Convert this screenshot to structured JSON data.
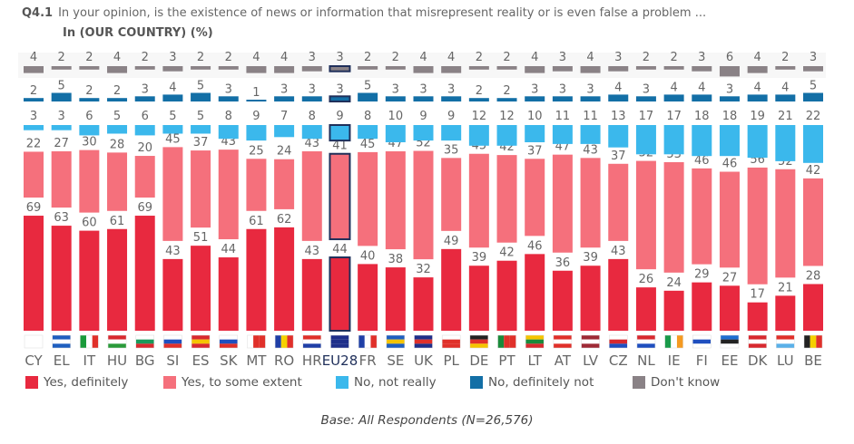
{
  "question_id": "Q4.1",
  "question": "In your opinion, is the existence of news or information that misrepresent reality or is even false a problem ...",
  "subtitle": "In (OUR COUNTRY)  (%)",
  "base": "Base: All Respondents (N=26,576)",
  "chart_data": {
    "type": "bar",
    "stacked": true,
    "highlight": "EU28",
    "categories": [
      "CY",
      "EL",
      "IT",
      "HU",
      "BG",
      "SI",
      "ES",
      "SK",
      "MT",
      "RO",
      "HR",
      "EU28",
      "FR",
      "SE",
      "UK",
      "PL",
      "DE",
      "PT",
      "LT",
      "AT",
      "LV",
      "CZ",
      "NL",
      "IE",
      "FI",
      "EE",
      "DK",
      "LU",
      "BE"
    ],
    "series": [
      {
        "name": "Yes, definitely",
        "color": "#e8293f",
        "values": [
          69,
          63,
          60,
          61,
          69,
          43,
          51,
          44,
          61,
          62,
          43,
          44,
          40,
          38,
          32,
          49,
          39,
          42,
          46,
          36,
          39,
          43,
          26,
          24,
          29,
          27,
          17,
          21,
          28
        ]
      },
      {
        "name": "Yes, to some extent",
        "color": "#f5707c",
        "values": [
          22,
          27,
          30,
          28,
          20,
          45,
          37,
          43,
          25,
          24,
          43,
          41,
          45,
          47,
          52,
          35,
          45,
          42,
          37,
          47,
          43,
          37,
          52,
          53,
          46,
          46,
          56,
          52,
          42
        ]
      },
      {
        "name": "No, not really",
        "color": "#3bb8ec",
        "values": [
          3,
          3,
          6,
          5,
          6,
          5,
          5,
          8,
          9,
          7,
          8,
          9,
          8,
          10,
          9,
          9,
          12,
          12,
          10,
          11,
          11,
          13,
          17,
          17,
          18,
          18,
          19,
          21,
          22
        ]
      },
      {
        "name": "No, definitely not",
        "color": "#136fa6",
        "values": [
          2,
          5,
          2,
          2,
          3,
          4,
          5,
          3,
          1,
          3,
          3,
          3,
          5,
          3,
          3,
          3,
          2,
          2,
          3,
          3,
          3,
          4,
          3,
          4,
          4,
          3,
          4,
          4,
          5
        ]
      },
      {
        "name": "Don't know",
        "color": "#8a8286",
        "values": [
          4,
          2,
          2,
          4,
          2,
          3,
          2,
          2,
          4,
          4,
          3,
          3,
          2,
          2,
          4,
          4,
          2,
          2,
          4,
          3,
          4,
          3,
          2,
          2,
          3,
          6,
          4,
          2,
          3
        ]
      }
    ],
    "flags": {
      "CY": {
        "d": "h",
        "c": [
          "#ffffff",
          "#ffffff",
          "#ffffff"
        ]
      },
      "EL": {
        "d": "h",
        "c": [
          "#1f5fbf",
          "#ffffff",
          "#1f5fbf"
        ]
      },
      "IT": {
        "d": "v",
        "c": [
          "#1a9a3a",
          "#ffffff",
          "#e0302a"
        ]
      },
      "HU": {
        "d": "h",
        "c": [
          "#d8292f",
          "#ffffff",
          "#2a9a3a"
        ]
      },
      "BG": {
        "d": "h",
        "c": [
          "#ffffff",
          "#1a9a5a",
          "#d8292f"
        ]
      },
      "SI": {
        "d": "h",
        "c": [
          "#ffffff",
          "#1f4fbf",
          "#e0302a"
        ]
      },
      "ES": {
        "d": "h",
        "c": [
          "#d8292f",
          "#f5c400",
          "#d8292f"
        ]
      },
      "SK": {
        "d": "h",
        "c": [
          "#ffffff",
          "#1f4fbf",
          "#e0302a"
        ]
      },
      "MT": {
        "d": "v",
        "c": [
          "#ffffff",
          "#e0302a",
          "#e0302a"
        ]
      },
      "RO": {
        "d": "v",
        "c": [
          "#1f3fa6",
          "#f5d000",
          "#e0302a"
        ]
      },
      "HR": {
        "d": "h",
        "c": [
          "#e0302a",
          "#ffffff",
          "#1f3fa6"
        ]
      },
      "EU28": {
        "d": "h",
        "c": [
          "#1f2f8a",
          "#1f2f8a",
          "#1f2f8a"
        ]
      },
      "FR": {
        "d": "v",
        "c": [
          "#1f3fa6",
          "#ffffff",
          "#e0302a"
        ]
      },
      "SE": {
        "d": "h",
        "c": [
          "#1f5fbf",
          "#f5c400",
          "#1f5fbf"
        ]
      },
      "UK": {
        "d": "h",
        "c": [
          "#1f2f8a",
          "#e0302a",
          "#1f2f8a"
        ]
      },
      "PL": {
        "d": "h",
        "c": [
          "#ffffff",
          "#e0302a",
          "#e0302a"
        ]
      },
      "DE": {
        "d": "h",
        "c": [
          "#222222",
          "#e0302a",
          "#f5c400"
        ]
      },
      "PT": {
        "d": "v",
        "c": [
          "#1a8a3a",
          "#e0302a",
          "#e0302a"
        ]
      },
      "LT": {
        "d": "h",
        "c": [
          "#f5c400",
          "#1a8a3a",
          "#d8292f"
        ]
      },
      "AT": {
        "d": "h",
        "c": [
          "#e0302a",
          "#ffffff",
          "#e0302a"
        ]
      },
      "LV": {
        "d": "h",
        "c": [
          "#9e2a36",
          "#ffffff",
          "#9e2a36"
        ]
      },
      "CZ": {
        "d": "h",
        "c": [
          "#ffffff",
          "#d8292f",
          "#1f4fbf"
        ]
      },
      "NL": {
        "d": "h",
        "c": [
          "#d8292f",
          "#ffffff",
          "#1f4fbf"
        ]
      },
      "IE": {
        "d": "v",
        "c": [
          "#1a9a4a",
          "#ffffff",
          "#f59a20"
        ]
      },
      "FI": {
        "d": "h",
        "c": [
          "#ffffff",
          "#1f4fbf",
          "#ffffff"
        ]
      },
      "EE": {
        "d": "h",
        "c": [
          "#1f6fd0",
          "#222222",
          "#ffffff"
        ]
      },
      "DK": {
        "d": "h",
        "c": [
          "#d8292f",
          "#ffffff",
          "#d8292f"
        ]
      },
      "LU": {
        "d": "h",
        "c": [
          "#e0302a",
          "#ffffff",
          "#5ab0e8"
        ]
      },
      "BE": {
        "d": "v",
        "c": [
          "#222222",
          "#f5d000",
          "#e0302a"
        ]
      }
    }
  }
}
